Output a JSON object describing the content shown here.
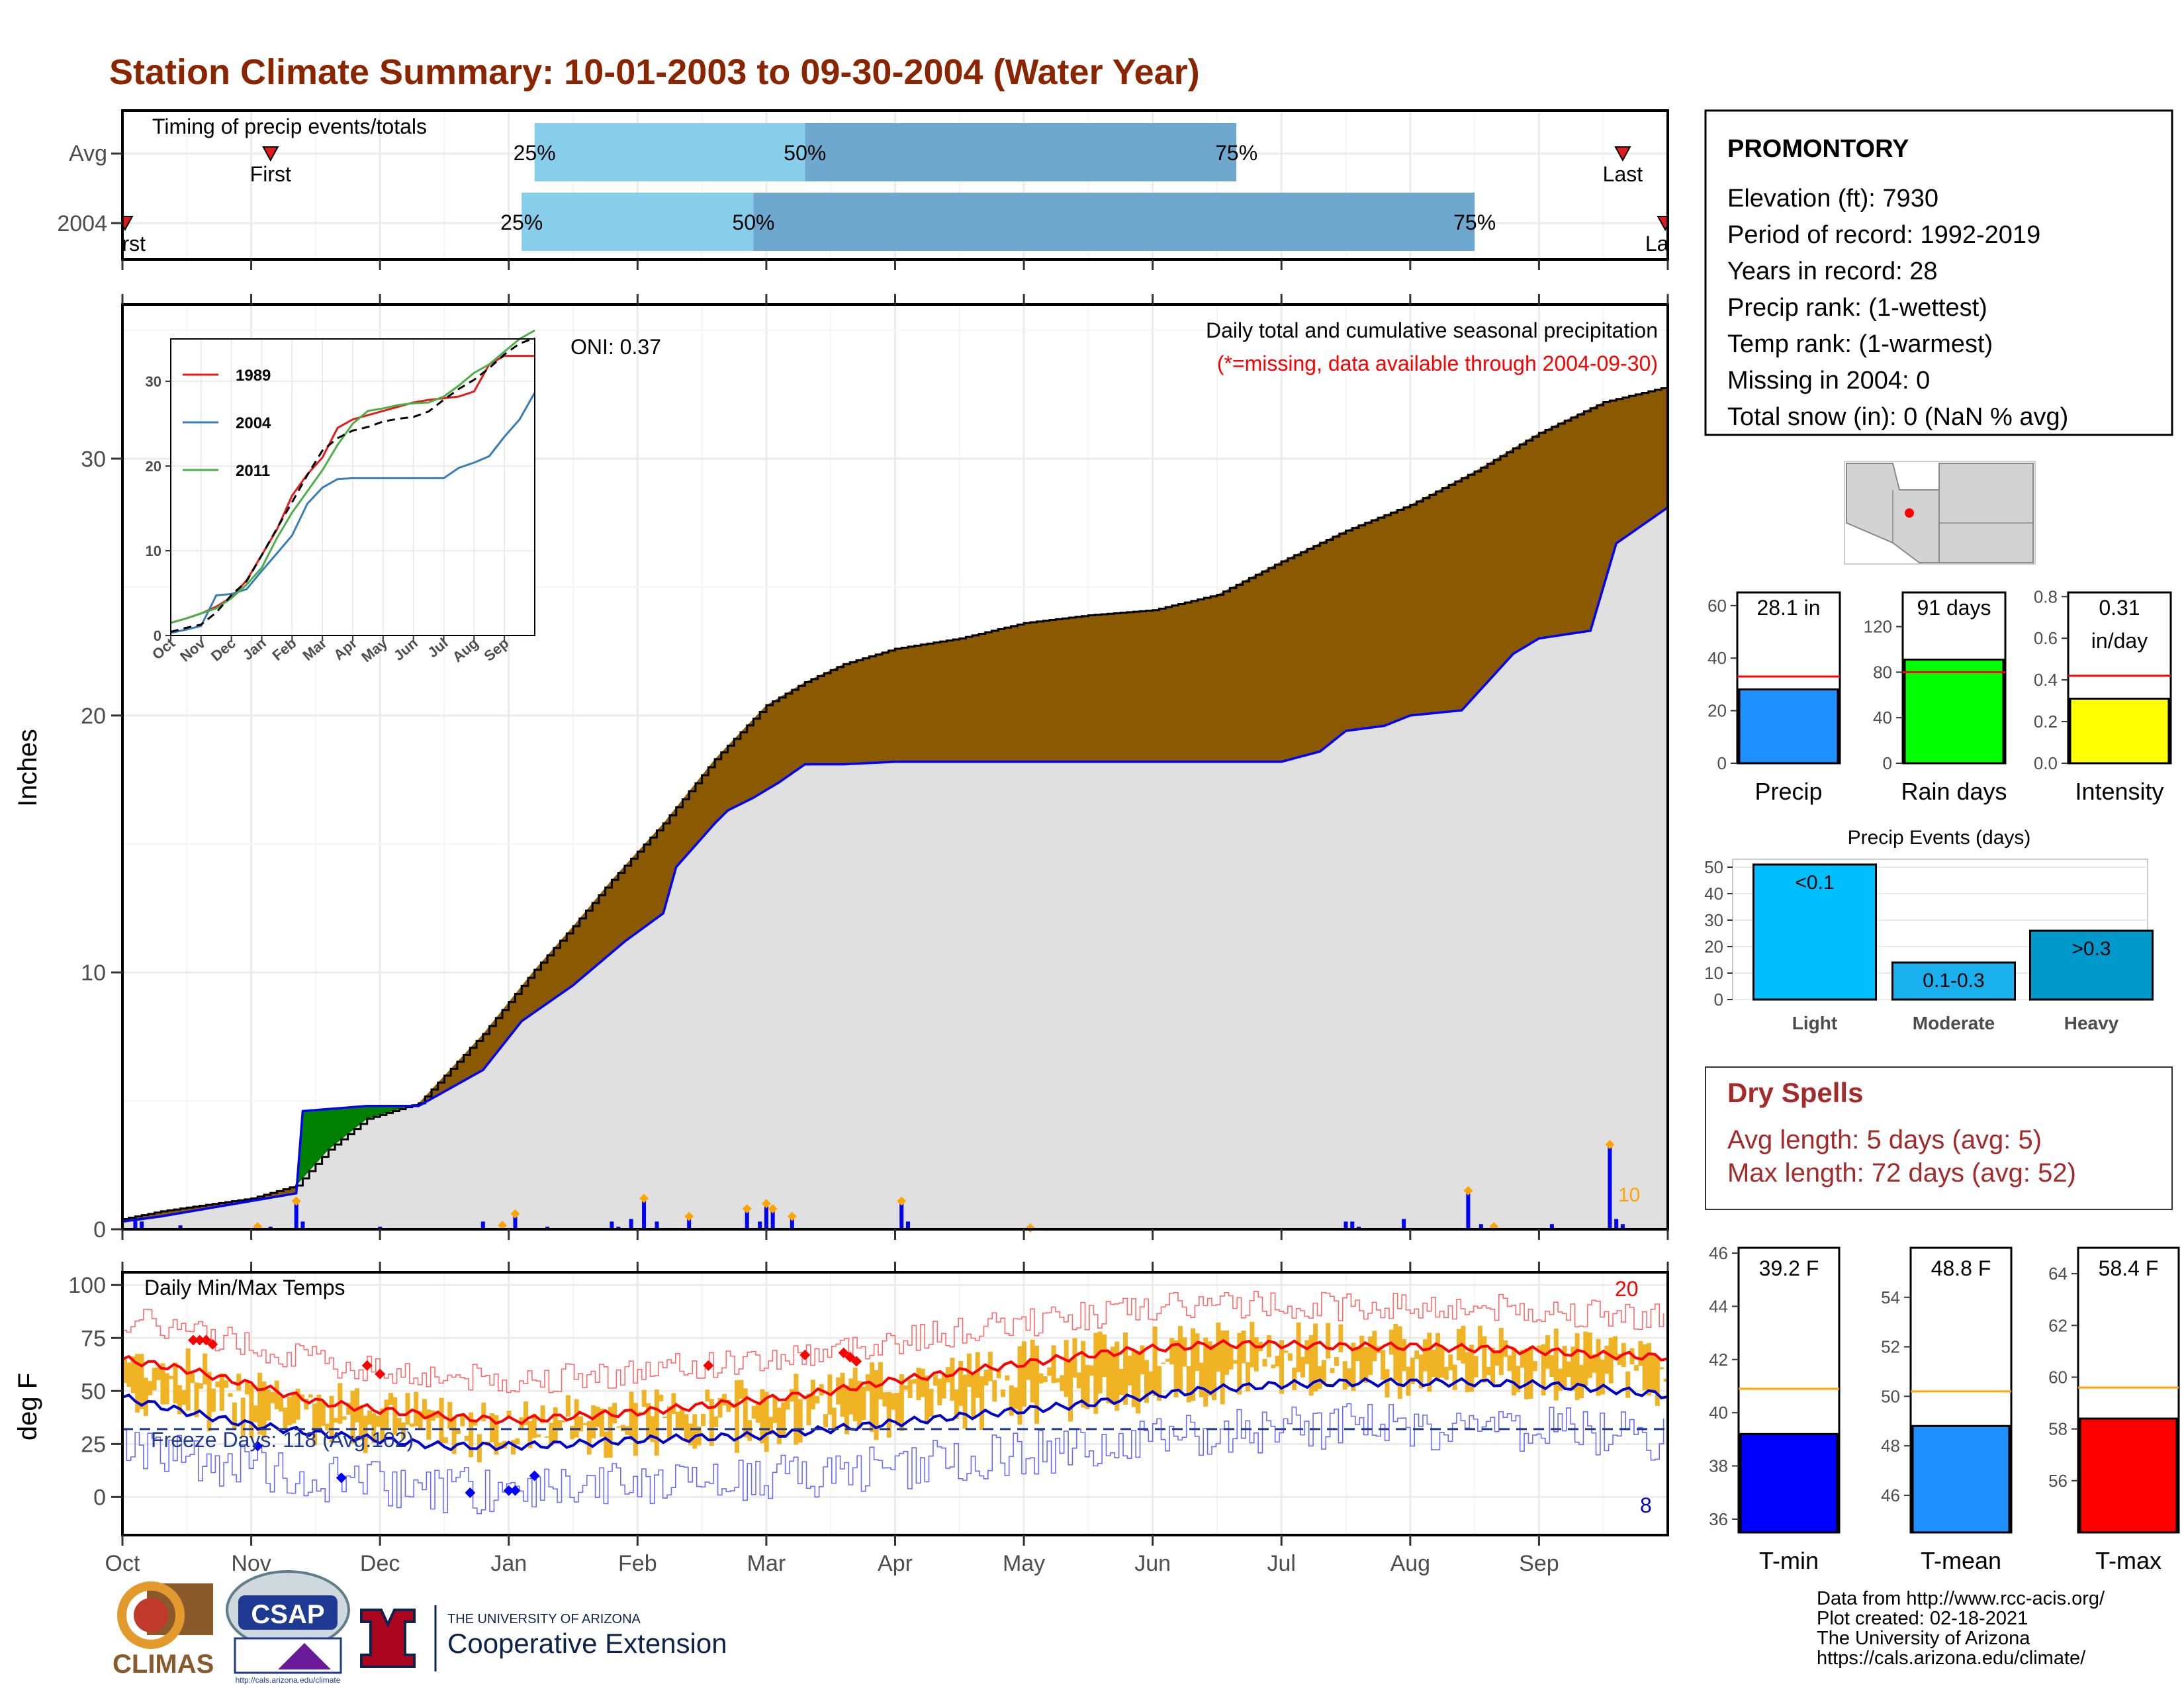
{
  "title": "Station Climate Summary: 10-01-2003 to 09-30-2004 (Water Year)",
  "timing_panel": {
    "heading": "Timing of precip events/totals",
    "rows": [
      {
        "label": "Avg",
        "first_label": "First",
        "last_label": "Last",
        "first_month": 1.15,
        "last_month": 11.65,
        "q25": 3.2,
        "q50": 5.3,
        "q75": 8.65,
        "pct25": "25%",
        "pct50": "50%",
        "pct75": "75%"
      },
      {
        "label": "2004",
        "first_label": "First",
        "last_label": "Last",
        "first_month": 0.02,
        "last_month": 11.98,
        "q25": 3.1,
        "q50": 4.9,
        "q75": 10.5,
        "pct25": "25%",
        "pct50": "50%",
        "pct75": "75%"
      }
    ]
  },
  "precip_panel": {
    "annotation_title": "Daily total and cumulative seasonal precipitation",
    "annotation_missing": "(*=missing, data available through 2004-09-30)",
    "oni": "ONI: 0.37",
    "ylabel": "Inches",
    "yticks": [
      "0",
      "10",
      "20",
      "30"
    ],
    "corner_label": "10"
  },
  "temp_panel": {
    "heading": "Daily Min/Max Temps",
    "freeze_label": "Freeze Days: 118 (Avg:102)",
    "ylabel": "deg F",
    "yticks": [
      "0",
      "25",
      "50",
      "75",
      "100"
    ],
    "count_hot": "20",
    "count_cold": "8",
    "freeze_line": 32
  },
  "month_labels": [
    "Oct",
    "Nov",
    "Dec",
    "Jan",
    "Feb",
    "Mar",
    "Apr",
    "May",
    "Jun",
    "Jul",
    "Aug",
    "Sep"
  ],
  "inset": {
    "legend": [
      "1989",
      "2004",
      "2011"
    ],
    "yticks": [
      "0",
      "10",
      "20",
      "30"
    ],
    "xticks": [
      "Oct",
      "Nov",
      "Dec",
      "Jan",
      "Feb",
      "Mar",
      "Apr",
      "May",
      "Jun",
      "Jul",
      "Aug",
      "Sep"
    ]
  },
  "station": {
    "name": "PROMONTORY",
    "lines": [
      "Elevation (ft): 7930",
      "Period of record: 1992-2019",
      "Years in record: 28",
      "Precip rank:  (1-wettest)",
      "Temp rank:  (1-warmest)",
      "Missing in 2004: 0",
      "Total snow (in): 0 (NaN % avg)"
    ]
  },
  "mini_bars": [
    {
      "label": "Precip",
      "value": 28.1,
      "avg": 33,
      "ymax": 65,
      "yticks": [
        "0",
        "20",
        "40",
        "60"
      ],
      "tickvals": [
        0,
        20,
        40,
        60
      ],
      "text1": "28.1 in",
      "text2": "",
      "color": "#1e90ff"
    },
    {
      "label": "Rain days",
      "value": 91,
      "avg": 80,
      "ymax": 150,
      "yticks": [
        "0",
        "40",
        "80",
        "120"
      ],
      "tickvals": [
        0,
        40,
        80,
        120
      ],
      "text1": "91 days",
      "text2": "",
      "color": "#00ff00"
    },
    {
      "label": "Intensity",
      "value": 0.31,
      "avg": 0.42,
      "ymax": 0.82,
      "yticks": [
        "0.0",
        "0.2",
        "0.4",
        "0.6",
        "0.8"
      ],
      "tickvals": [
        0,
        0.2,
        0.4,
        0.6,
        0.8
      ],
      "text1": "0.31",
      "text2": "in/day",
      "color": "#ffff00"
    }
  ],
  "events": {
    "title": "Precip Events (days)",
    "yticks": [
      "0",
      "10",
      "20",
      "30",
      "40",
      "50"
    ],
    "bars": [
      {
        "label": "Light",
        "value": 51,
        "text": "<0.1",
        "color": "#00bfff"
      },
      {
        "label": "Moderate",
        "value": 14,
        "text": "0.1-0.3",
        "color": "#1ab0ee"
      },
      {
        "label": "Heavy",
        "value": 26,
        "text": ">0.3",
        "color": "#0099cc"
      }
    ]
  },
  "dry_spells": {
    "title": "Dry Spells",
    "avg_line": "Avg length: 5 days (avg: 5)",
    "max_line": "Max length: 72 days (avg: 52)"
  },
  "temp_bars": [
    {
      "label": "T-min",
      "value": 39.2,
      "avg": 40.9,
      "ymin": 35.5,
      "ymax": 46.2,
      "yticks": [
        "36",
        "38",
        "40",
        "42",
        "44",
        "46"
      ],
      "text": "39.2 F",
      "color": "#0000ff"
    },
    {
      "label": "T-mean",
      "value": 48.8,
      "avg": 50.2,
      "ymin": 44.5,
      "ymax": 56,
      "yticks": [
        "46",
        "48",
        "50",
        "52",
        "54"
      ],
      "text": "48.8 F",
      "color": "#1e90ff"
    },
    {
      "label": "T-max",
      "value": 58.4,
      "avg": 59.6,
      "ymin": 54,
      "ymax": 65,
      "yticks": [
        "56",
        "58",
        "60",
        "62",
        "64"
      ],
      "text": "58.4 F",
      "color": "#ff0000"
    }
  ],
  "footer": {
    "source": "Data from http://www.rcc-acis.org/",
    "created": "Plot created: 02-18-2021",
    "org": "The University of Arizona",
    "url": "https://cals.arizona.edu/climate/",
    "logo1": "CLIMAS",
    "logo2": "CSAP",
    "logo2_sub": "http://cals.arizona.edu/climate",
    "logo3_top": "THE UNIVERSITY OF ARIZONA",
    "logo3_main": "Cooperative Extension"
  },
  "chart_data": [
    {
      "type": "area",
      "title": "Daily total and cumulative seasonal precipitation",
      "ylabel": "Inches",
      "ylim": [
        0,
        36
      ],
      "x_unit": "month of water year (Oct=0)",
      "series": [
        {
          "name": "",
          "x": [
            0,
            0.3,
            1.0,
            1.35,
            1.6,
            1.9,
            2.3,
            2.8,
            3.2,
            3.5,
            3.8,
            4.2,
            4.6,
            5.0,
            5.3,
            5.6,
            6.0,
            6.5,
            7.0,
            7.5,
            8.0,
            8.5,
            9.0,
            9.5,
            10.0,
            10.5,
            11.0,
            11.5,
            12.0
          ],
          "values": [
            0.4,
            0.7,
            1.2,
            1.7,
            3.1,
            4.3,
            4.9,
            7.6,
            10.1,
            11.8,
            13.6,
            15.8,
            18.3,
            20.4,
            21.3,
            22.0,
            22.6,
            23.0,
            23.6,
            23.9,
            24.1,
            24.7,
            26.0,
            27.2,
            28.2,
            29.5,
            31.0,
            32.2,
            32.8
          ]
        },
        {
          "name": "2004",
          "x": [
            0,
            0.3,
            1.0,
            1.35,
            1.4,
            1.9,
            2.3,
            2.8,
            3.1,
            3.5,
            3.9,
            4.2,
            4.3,
            4.6,
            4.7,
            4.9,
            5.1,
            5.3,
            5.6,
            6.0,
            6.4,
            7.0,
            8.0,
            9.0,
            9.3,
            9.5,
            9.8,
            10.0,
            10.4,
            10.8,
            11.0,
            11.4,
            11.6,
            12.0
          ],
          "values": [
            0.3,
            0.5,
            1.1,
            1.4,
            4.6,
            4.8,
            4.8,
            6.2,
            8.1,
            9.5,
            11.2,
            12.3,
            14.1,
            15.8,
            16.3,
            16.8,
            17.4,
            18.1,
            18.1,
            18.2,
            18.2,
            18.2,
            18.2,
            18.2,
            18.6,
            19.4,
            19.6,
            20.0,
            20.2,
            22.4,
            23.0,
            23.3,
            26.7,
            28.1
          ]
        }
      ],
      "daily_precip": {
        "x": [
          0.1,
          0.15,
          0.45,
          1.05,
          1.15,
          1.35,
          1.4,
          2.0,
          2.25,
          2.8,
          2.95,
          3.05,
          3.3,
          3.7,
          3.8,
          3.85,
          3.95,
          4.05,
          4.15,
          4.2,
          4.4,
          4.85,
          4.95,
          5.0,
          5.05,
          5.2,
          5.4,
          6.05,
          6.1,
          6.2,
          6.85,
          7.05,
          9.5,
          9.55,
          9.6,
          9.95,
          10.45,
          10.55,
          10.65,
          11.1,
          11.55,
          11.6,
          11.65
        ],
        "values": [
          0.4,
          0.3,
          0.15,
          0.1,
          0.1,
          1.1,
          0.3,
          0.1,
          0.05,
          0.3,
          0.15,
          0.6,
          0.1,
          0.05,
          0.3,
          0.1,
          0.4,
          1.2,
          0.3,
          0.05,
          0.5,
          0.8,
          0.3,
          1.0,
          0.8,
          0.5,
          0.05,
          1.1,
          0.3,
          0.05,
          0.05,
          0.05,
          0.3,
          0.3,
          0.1,
          0.4,
          1.5,
          0.2,
          0.1,
          0.2,
          3.3,
          0.4,
          0.2
        ]
      }
    },
    {
      "type": "line",
      "title": "Daily Min/Max Temps",
      "ylabel": "deg F",
      "ylim": [
        -18,
        106
      ],
      "x_unit": "month of water year (Oct=0)",
      "series": [
        {
          "name": "",
          "x": [
            0,
            0.5,
            1.0,
            1.5,
            2.0,
            2.5,
            3.0,
            3.5,
            4.0,
            4.5,
            5.0,
            5.5,
            6.0,
            6.5,
            7.0,
            7.5,
            8.0,
            8.5,
            9.0,
            9.5,
            10.0,
            10.5,
            11.0,
            11.5,
            12.0
          ],
          "values": [
            65,
            60,
            53,
            45,
            41,
            38,
            36,
            38,
            40,
            43,
            46,
            50,
            55,
            59,
            63,
            67,
            70,
            72,
            72,
            71,
            71,
            70,
            69,
            67,
            66
          ]
        },
        {
          "name": "",
          "x": [
            0,
            0.5,
            1.0,
            1.5,
            2.0,
            2.5,
            3.0,
            3.5,
            4.0,
            4.5,
            5.0,
            5.5,
            6.0,
            6.5,
            7.0,
            7.5,
            8.0,
            8.5,
            9.0,
            9.5,
            10.0,
            10.5,
            11.0,
            11.5,
            12.0
          ],
          "values": [
            47,
            40,
            34,
            30,
            27,
            24,
            24,
            25,
            27,
            28,
            29,
            32,
            35,
            38,
            41,
            44,
            48,
            51,
            53,
            54,
            54,
            54,
            53,
            51,
            48
          ]
        }
      ],
      "annotations": [
        "Freeze Days: 118 (Avg:102)"
      ]
    }
  ]
}
